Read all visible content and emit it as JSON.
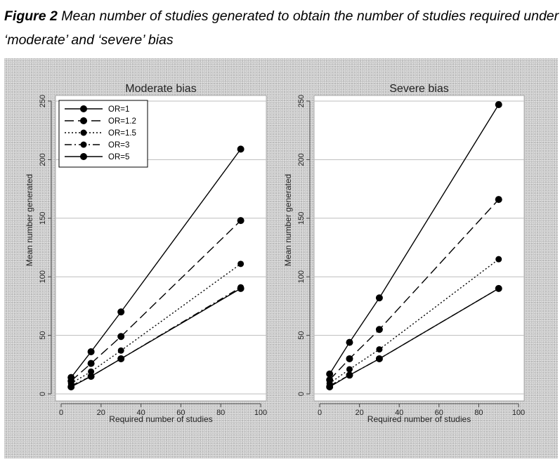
{
  "caption": {
    "lead": "Figure 2",
    "text": " Mean number of studies generated to obtain the number of studies required under ‘moderate’ and ‘severe’ bias"
  },
  "chart_data": [
    {
      "type": "line",
      "title": "Moderate bias",
      "xlabel": "Required number of studies",
      "ylabel": "Mean number generated",
      "xlim": [
        0,
        100
      ],
      "ylim": [
        0,
        250
      ],
      "xticks": [
        0,
        20,
        40,
        60,
        80,
        100
      ],
      "yticks": [
        0,
        50,
        100,
        150,
        200,
        250
      ],
      "grid": "horizontal",
      "legend_position": "top-left",
      "x": [
        5,
        15,
        30,
        90
      ],
      "series": [
        {
          "name": "OR=1",
          "values": [
            14,
            36,
            70,
            209
          ]
        },
        {
          "name": "OR=1.2",
          "values": [
            11,
            26,
            49,
            148
          ]
        },
        {
          "name": "OR=1.5",
          "values": [
            9,
            19,
            37,
            111
          ]
        },
        {
          "name": "OR=3",
          "values": [
            7,
            15,
            30,
            91
          ]
        },
        {
          "name": "OR=5",
          "values": [
            6,
            15,
            30,
            90
          ]
        }
      ]
    },
    {
      "type": "line",
      "title": "Severe bias",
      "xlabel": "Required number of studies",
      "ylabel": "Mean number generated",
      "xlim": [
        0,
        100
      ],
      "ylim": [
        0,
        250
      ],
      "xticks": [
        0,
        20,
        40,
        60,
        80,
        100
      ],
      "yticks": [
        0,
        50,
        100,
        150,
        200,
        250
      ],
      "grid": "horizontal",
      "x": [
        5,
        15,
        30,
        90
      ],
      "series": [
        {
          "name": "OR=1",
          "values": [
            17,
            44,
            82,
            247
          ]
        },
        {
          "name": "OR=1.2",
          "values": [
            12,
            30,
            55,
            166
          ]
        },
        {
          "name": "OR=1.5",
          "values": [
            9,
            21,
            38,
            115
          ]
        },
        {
          "name": "OR=3",
          "values": [
            7,
            16,
            30,
            90
          ]
        },
        {
          "name": "OR=5",
          "values": [
            6,
            16,
            30,
            90
          ]
        }
      ]
    }
  ],
  "styles": {
    "line_color": "#000000",
    "grid_color": "#bdbdbd",
    "plot_background": "#ffffff",
    "outer_background": "#c9c9c9",
    "dash_patterns": [
      "",
      "13,6",
      "2,3",
      "10,4,2,4",
      ""
    ]
  }
}
